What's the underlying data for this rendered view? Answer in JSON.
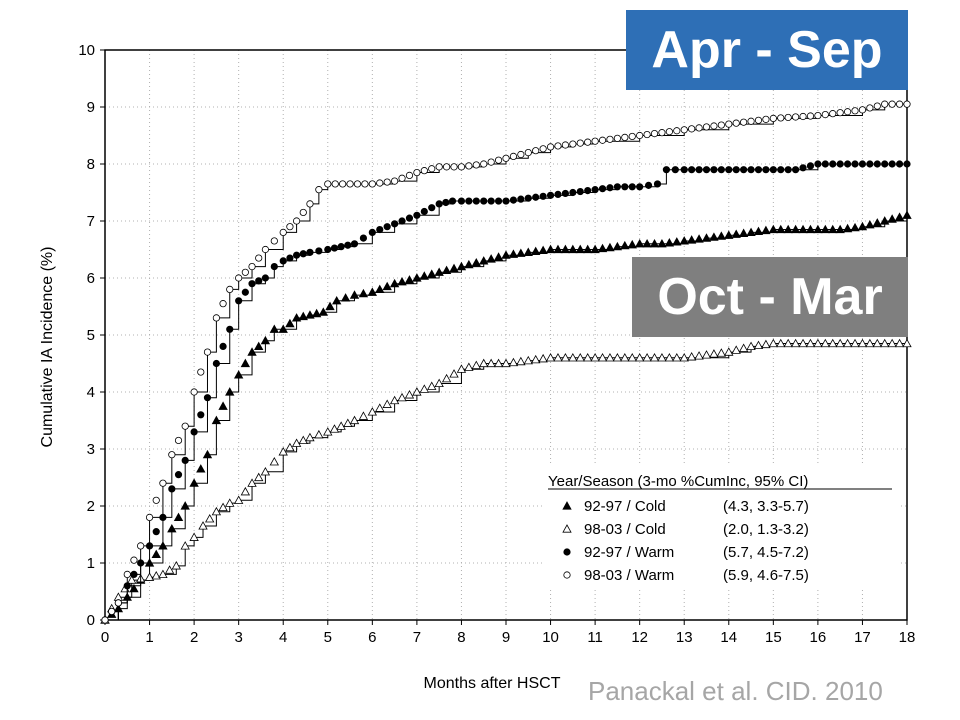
{
  "banners": {
    "warm": "Apr - Sep",
    "cold": "Oct - Mar",
    "warm_color": "#2e6fb6",
    "cold_color": "#7f7f7f"
  },
  "citation": "Panackal et al. CID. 2010",
  "chart_data": {
    "type": "line",
    "xlabel": "Months after HSCT",
    "ylabel": "Cumulative IA Incidence (%)",
    "xlim": [
      0,
      18
    ],
    "ylim": [
      0,
      10
    ],
    "xticks": [
      "0",
      "1",
      "2",
      "3",
      "4",
      "5",
      "6",
      "7",
      "8",
      "9",
      "10",
      "11",
      "12",
      "13",
      "14",
      "15",
      "16",
      "17",
      "18"
    ],
    "yticks": [
      "0",
      "1",
      "2",
      "3",
      "4",
      "5",
      "6",
      "7",
      "8",
      "9",
      "10"
    ],
    "grid": true,
    "legend": {
      "title": "Year/Season (3-mo %CumInc, 95% CI)",
      "placement": "bottom-right"
    },
    "series": [
      {
        "name": "92-97 / Cold",
        "ci": "(4.3, 3.3-5.7)",
        "marker": "filled-triangle",
        "x": [
          0,
          0.3,
          0.5,
          0.8,
          1.0,
          1.3,
          1.5,
          1.8,
          2.0,
          2.3,
          2.5,
          2.8,
          3.0,
          3.3,
          3.6,
          3.8,
          4.0,
          4.3,
          4.6,
          4.9,
          5.2,
          5.6,
          6.0,
          6.5,
          7.0,
          7.5,
          8.0,
          8.5,
          9.0,
          9.5,
          10.0,
          10.5,
          11.0,
          11.5,
          12.0,
          12.5,
          13.0,
          13.5,
          14.0,
          14.5,
          15.0,
          15.5,
          16.0,
          16.5,
          17.0,
          17.5,
          18.0
        ],
        "y": [
          0,
          0.2,
          0.4,
          0.7,
          1.0,
          1.3,
          1.6,
          2.0,
          2.4,
          2.9,
          3.5,
          4.0,
          4.3,
          4.7,
          4.9,
          5.1,
          5.1,
          5.3,
          5.35,
          5.4,
          5.6,
          5.7,
          5.75,
          5.9,
          6.0,
          6.1,
          6.2,
          6.3,
          6.4,
          6.45,
          6.5,
          6.5,
          6.5,
          6.55,
          6.6,
          6.6,
          6.65,
          6.7,
          6.75,
          6.8,
          6.85,
          6.85,
          6.85,
          6.85,
          6.9,
          7.0,
          7.1
        ]
      },
      {
        "name": "98-03 / Cold",
        "ci": "(2.0, 1.3-3.2)",
        "marker": "open-triangle",
        "x": [
          0,
          0.3,
          0.6,
          1.0,
          1.3,
          1.6,
          1.8,
          2.0,
          2.2,
          2.5,
          2.8,
          3.0,
          3.3,
          3.6,
          4.0,
          4.3,
          4.6,
          5.0,
          5.3,
          5.6,
          6.0,
          6.5,
          7.0,
          7.5,
          8.0,
          8.5,
          9.0,
          9.5,
          10.0,
          11.0,
          12.0,
          13.0,
          14.0,
          14.5,
          15.0,
          16.0,
          17.0,
          17.5,
          18.0
        ],
        "y": [
          0,
          0.4,
          0.7,
          0.75,
          0.8,
          0.95,
          1.3,
          1.45,
          1.65,
          1.9,
          2.05,
          2.1,
          2.4,
          2.6,
          2.95,
          3.1,
          3.2,
          3.3,
          3.4,
          3.5,
          3.65,
          3.85,
          4.0,
          4.15,
          4.4,
          4.5,
          4.5,
          4.55,
          4.6,
          4.6,
          4.6,
          4.6,
          4.7,
          4.8,
          4.85,
          4.85,
          4.85,
          4.85,
          4.85
        ]
      },
      {
        "name": "92-97 / Warm",
        "ci": "(5.7, 4.5-7.2)",
        "marker": "filled-circle",
        "x": [
          0,
          0.3,
          0.5,
          0.8,
          1.0,
          1.3,
          1.5,
          1.8,
          2.0,
          2.3,
          2.5,
          2.8,
          3.0,
          3.3,
          3.6,
          3.8,
          4.0,
          4.3,
          4.6,
          5.0,
          5.3,
          5.6,
          6.0,
          6.5,
          7.0,
          7.5,
          7.8,
          8.0,
          8.5,
          9.0,
          9.5,
          10.0,
          10.5,
          11.0,
          11.5,
          12.0,
          12.4,
          12.6,
          13.0,
          14.0,
          15.0,
          15.5,
          16.0,
          17.0,
          18.0
        ],
        "y": [
          0,
          0.3,
          0.6,
          1.0,
          1.3,
          1.8,
          2.3,
          2.8,
          3.3,
          3.9,
          4.5,
          5.1,
          5.6,
          5.9,
          6.0,
          6.2,
          6.3,
          6.4,
          6.45,
          6.5,
          6.55,
          6.6,
          6.8,
          6.95,
          7.1,
          7.3,
          7.35,
          7.35,
          7.35,
          7.35,
          7.4,
          7.45,
          7.5,
          7.55,
          7.6,
          7.6,
          7.65,
          7.9,
          7.9,
          7.9,
          7.9,
          7.9,
          8.0,
          8.0,
          8.0
        ]
      },
      {
        "name": "98-03 / Warm",
        "ci": "(5.9, 4.6-7.5)",
        "marker": "open-circle",
        "x": [
          0,
          0.3,
          0.5,
          0.8,
          1.0,
          1.3,
          1.5,
          1.8,
          2.0,
          2.3,
          2.5,
          2.8,
          3.0,
          3.3,
          3.6,
          4.0,
          4.3,
          4.6,
          4.8,
          5.0,
          5.5,
          6.0,
          6.5,
          7.0,
          7.5,
          8.0,
          8.5,
          9.0,
          9.5,
          10.0,
          10.5,
          11.0,
          12.0,
          13.0,
          14.0,
          15.0,
          16.0,
          17.0,
          17.5,
          18.0
        ],
        "y": [
          0,
          0.3,
          0.8,
          1.3,
          1.8,
          2.4,
          2.9,
          3.4,
          4.0,
          4.7,
          5.3,
          5.8,
          6.0,
          6.2,
          6.5,
          6.8,
          7.0,
          7.3,
          7.55,
          7.65,
          7.65,
          7.65,
          7.7,
          7.85,
          7.95,
          7.95,
          8.0,
          8.1,
          8.2,
          8.3,
          8.35,
          8.4,
          8.5,
          8.6,
          8.7,
          8.8,
          8.85,
          8.95,
          9.05,
          9.05
        ]
      }
    ]
  }
}
